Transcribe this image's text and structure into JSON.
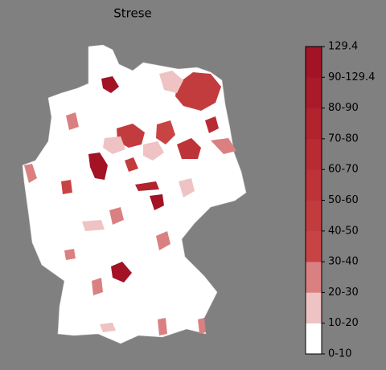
{
  "title": "Strese",
  "legend": {
    "ticks": [
      "0-10",
      "10-20",
      "20-30",
      "30-40",
      "40-50",
      "50-60",
      "60-70",
      "70-80",
      "80-90",
      "90-129.4",
      "129.4"
    ],
    "colors": [
      "#ffffff",
      "#efc3c3",
      "#da8080",
      "#c84444",
      "#c23c3e",
      "#bd3338",
      "#b82b33",
      "#b2232e",
      "#ab1a29",
      "#a31225"
    ]
  }
}
